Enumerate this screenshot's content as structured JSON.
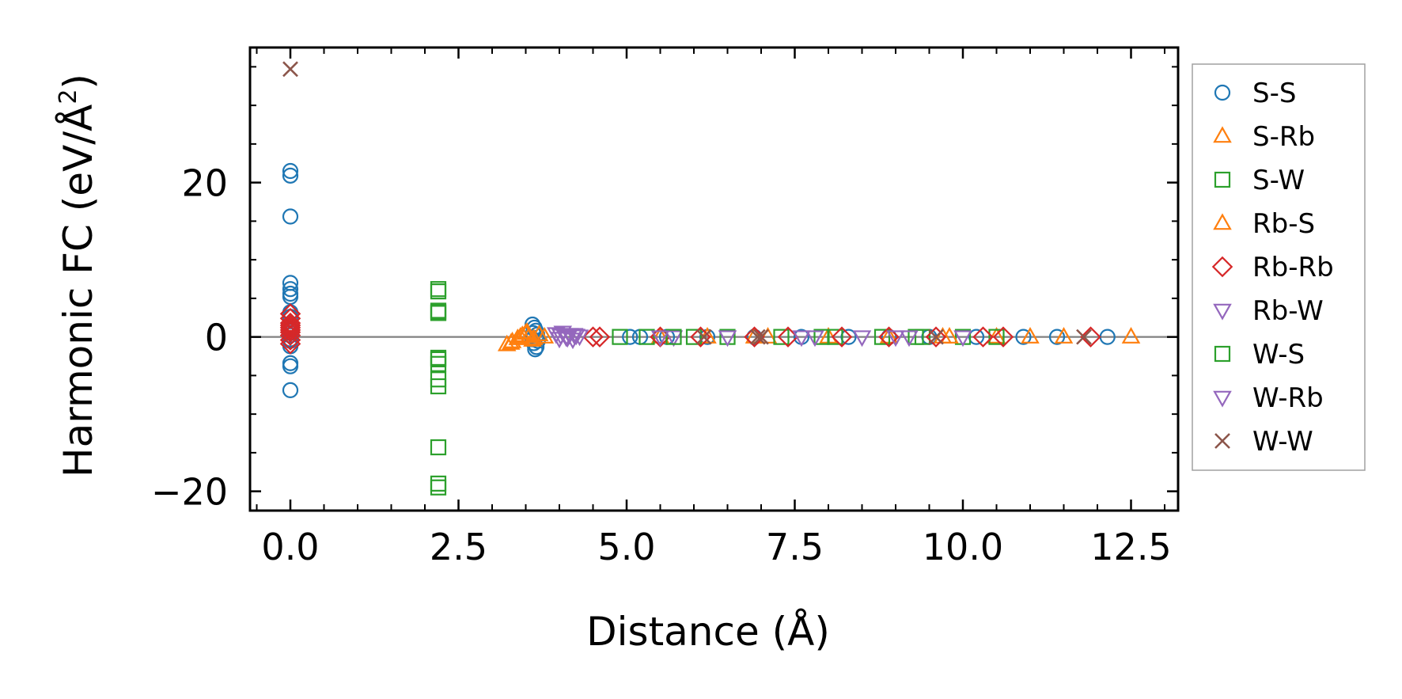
{
  "chart_data": {
    "type": "scatter",
    "title": "",
    "xlabel": "Distance (Å)",
    "ylabel_main": "Harmonic FC (eV/Å",
    "ylabel_sup": "2",
    "ylabel_close": ")",
    "xlim": [
      -0.6,
      13.2
    ],
    "ylim": [
      -22.5,
      37.5
    ],
    "xticks": [
      0.0,
      2.5,
      5.0,
      7.5,
      10.0,
      12.5
    ],
    "xtick_labels": [
      "0.0",
      "2.5",
      "5.0",
      "7.5",
      "10.0",
      "12.5"
    ],
    "yticks": [
      -20,
      0,
      20
    ],
    "ytick_labels": [
      "−20",
      "0",
      "20"
    ],
    "zero_line": 0,
    "grid": false,
    "legend_position": "outside-right",
    "series": [
      {
        "name": "S-S",
        "marker": "circle",
        "color": "#1f77b4",
        "x": [
          0,
          0,
          0,
          0,
          0,
          0,
          0,
          0,
          0,
          0,
          0,
          0,
          0,
          0,
          0,
          0,
          0,
          0,
          3.6,
          3.63,
          3.65,
          3.67,
          3.6,
          3.62,
          3.66,
          3.64,
          3.61,
          3.68,
          5.05,
          5.2,
          5.6,
          6.2,
          6.9,
          7.6,
          8.3,
          8.9,
          9.5,
          10.2,
          10.9,
          11.4,
          12.15
        ],
        "y": [
          21.5,
          20.9,
          15.6,
          7.0,
          6.2,
          5.6,
          5.2,
          3.2,
          2.6,
          1.0,
          0.5,
          -0.5,
          -1.2,
          -3.4,
          -3.8,
          -6.9,
          0.2,
          -0.3,
          1.6,
          1.2,
          0.8,
          0.3,
          -0.3,
          -0.8,
          -1.3,
          -1.6,
          0.5,
          -0.5,
          0,
          0,
          0,
          0,
          0,
          0,
          0,
          0,
          0,
          0,
          0,
          0,
          0
        ]
      },
      {
        "name": "S-Rb",
        "marker": "triangle-up",
        "color": "#ff7f0e",
        "x": [
          3.22,
          3.3,
          3.38,
          3.45,
          3.5,
          3.55,
          3.6,
          3.7,
          3.78,
          5.5,
          6.2,
          7.1,
          8.0,
          8.9,
          9.7,
          10.5,
          11.0,
          11.5,
          12.5
        ],
        "y": [
          -1.0,
          -0.6,
          -0.2,
          0.2,
          0.5,
          0.1,
          -0.4,
          0.3,
          0,
          0,
          0,
          0,
          0,
          0,
          0,
          0,
          0,
          0,
          0
        ]
      },
      {
        "name": "S-W",
        "marker": "square",
        "color": "#2ca02c",
        "x": [
          2.2,
          2.2,
          2.2,
          2.2,
          2.2,
          2.2,
          2.2,
          2.2,
          2.2,
          2.2,
          2.2,
          4.9,
          5.3,
          6.0,
          6.5,
          7.3,
          8.1,
          8.8,
          9.4,
          10.0,
          10.5
        ],
        "y": [
          6.2,
          5.9,
          3.4,
          3.1,
          -2.7,
          -3.5,
          -5.5,
          -6.4,
          -14.3,
          -19.0,
          -19.5,
          0,
          0,
          0,
          0,
          0,
          0,
          0,
          0,
          0,
          0
        ]
      },
      {
        "name": "Rb-S",
        "marker": "triangle-up",
        "color": "#ff7f0e",
        "x": [
          3.28,
          3.42,
          3.52,
          3.62,
          6.9,
          9.8
        ],
        "y": [
          -0.8,
          0.0,
          0.6,
          -0.2,
          0,
          0
        ]
      },
      {
        "name": "Rb-Rb",
        "marker": "diamond",
        "color": "#d62728",
        "x": [
          0,
          0,
          0,
          0,
          0,
          0,
          0,
          0,
          0,
          0,
          4.5,
          4.6,
          5.5,
          6.1,
          6.9,
          7.4,
          8.2,
          8.9,
          9.6,
          10.3,
          10.6,
          11.9
        ],
        "y": [
          3.0,
          2.4,
          1.8,
          1.2,
          0.6,
          0.2,
          -0.4,
          -0.9,
          1.5,
          0.9,
          0,
          0,
          0,
          0,
          0,
          0,
          0,
          0,
          0,
          0,
          0,
          0
        ]
      },
      {
        "name": "Rb-W",
        "marker": "triangle-down",
        "color": "#9467bd",
        "x": [
          3.95,
          4.0,
          4.05,
          4.1,
          4.15,
          4.2,
          4.25,
          4.3,
          5.7,
          7.6,
          9.0
        ],
        "y": [
          0.4,
          -0.2,
          0.6,
          0,
          0.3,
          -0.3,
          0.2,
          0.1,
          0,
          0,
          0
        ]
      },
      {
        "name": "W-S",
        "marker": "square",
        "color": "#2ca02c",
        "x": [
          2.2,
          2.2,
          5.7,
          7.9,
          9.3
        ],
        "y": [
          -2.9,
          3.2,
          0,
          0,
          0
        ]
      },
      {
        "name": "W-Rb",
        "marker": "triangle-down",
        "color": "#9467bd",
        "x": [
          4.02,
          4.12,
          4.22,
          5.5,
          6.5,
          7.8,
          8.5,
          9.2,
          10.0
        ],
        "y": [
          0.2,
          -0.1,
          0.3,
          0,
          0,
          0,
          0,
          0,
          0
        ]
      },
      {
        "name": "W-W",
        "marker": "x",
        "color": "#8c564b",
        "x": [
          0,
          6.15,
          6.95,
          7.0,
          9.6,
          11.8
        ],
        "y": [
          34.7,
          0,
          0,
          0,
          0,
          0
        ]
      }
    ]
  }
}
